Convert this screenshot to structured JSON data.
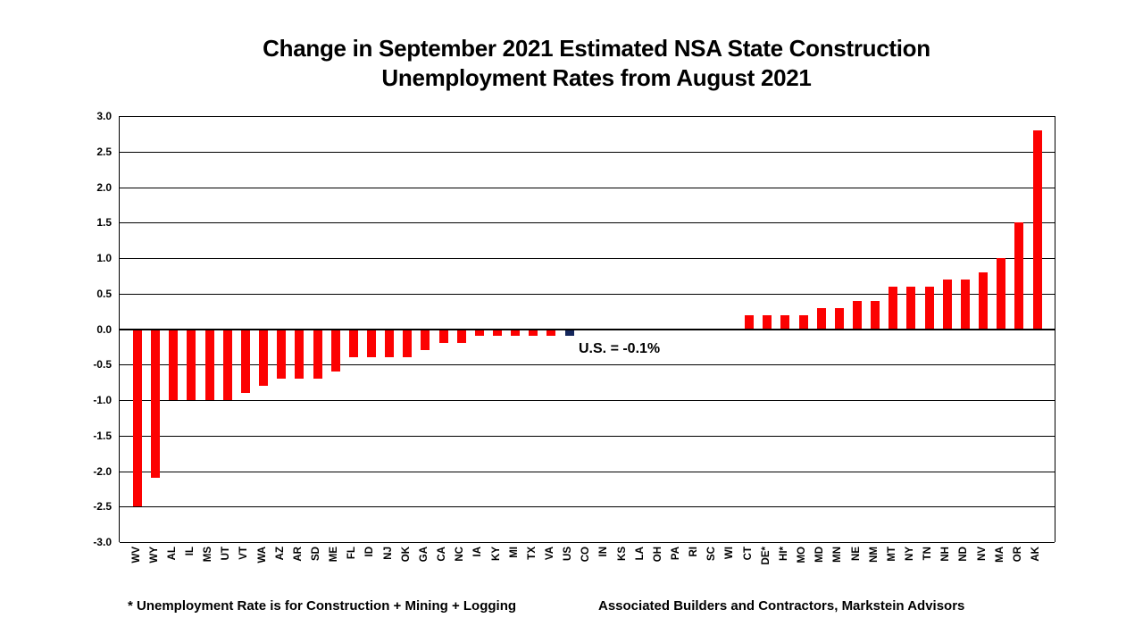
{
  "chart_data": {
    "type": "bar",
    "title_line1": "Change in September 2021 Estimated NSA State Construction",
    "title_line2": "Unemployment Rates from August 2021",
    "categories": [
      "WV",
      "WY",
      "AL",
      "IL",
      "MS",
      "UT",
      "VT",
      "WA",
      "AZ",
      "AR",
      "SD",
      "ME",
      "FL",
      "ID",
      "NJ",
      "OK",
      "GA",
      "CA",
      "NC",
      "IA",
      "KY",
      "MI",
      "TX",
      "VA",
      "US",
      "CO",
      "IN",
      "KS",
      "LA",
      "OH",
      "PA",
      "RI",
      "SC",
      "WI",
      "CT",
      "DE*",
      "HI*",
      "MO",
      "MD",
      "MN",
      "NE",
      "NM",
      "MT",
      "NY",
      "TN",
      "NH",
      "ND",
      "NV",
      "MA",
      "OR",
      "AK"
    ],
    "values": [
      -2.5,
      -2.1,
      -1.0,
      -1.0,
      -1.0,
      -1.0,
      -0.9,
      -0.8,
      -0.7,
      -0.7,
      -0.7,
      -0.6,
      -0.4,
      -0.4,
      -0.4,
      -0.4,
      -0.3,
      -0.2,
      -0.2,
      -0.1,
      -0.1,
      -0.1,
      -0.1,
      -0.1,
      -0.1,
      0.0,
      0.0,
      0.0,
      0.0,
      0.0,
      0.0,
      0.0,
      0.0,
      0.0,
      0.2,
      0.2,
      0.2,
      0.2,
      0.3,
      0.3,
      0.4,
      0.4,
      0.6,
      0.6,
      0.6,
      0.7,
      0.7,
      0.8,
      1.0,
      1.5,
      2.8
    ],
    "highlight_category": "US",
    "yticks": [
      "3.0",
      "2.5",
      "2.0",
      "1.5",
      "1.0",
      "0.5",
      "0.0",
      "-0.5",
      "-1.0",
      "-1.5",
      "-2.0",
      "-2.5",
      "-3.0"
    ],
    "ylim": [
      -3.0,
      3.0
    ],
    "ytick_step": 0.5,
    "grid": "on",
    "legend": "none",
    "annotation": "U.S. = -0.1%",
    "footnote_left": "* Unemployment Rate is for Construction + Mining + Logging",
    "footnote_right": "Associated Builders and Contractors, Markstein Advisors",
    "bar_color": "#FC0101",
    "us_bar_color": "#14265B",
    "axis_color": "#000000"
  }
}
